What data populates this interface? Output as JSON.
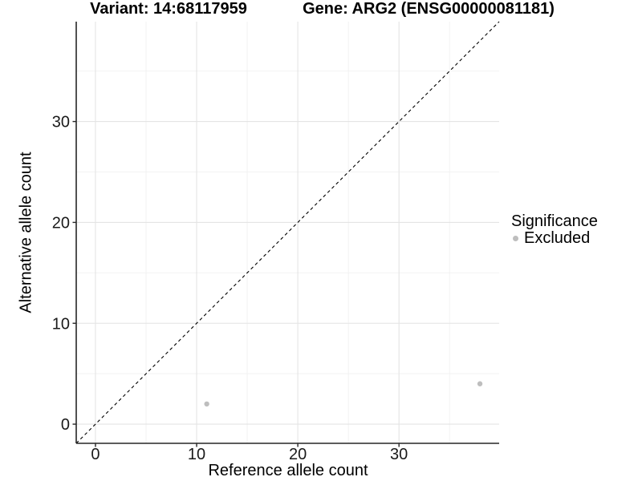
{
  "titles": {
    "variant": "Variant: 14:68117959",
    "gene": "Gene: ARG2 (ENSG00000081181)"
  },
  "legend": {
    "title": "Significance",
    "items": [
      {
        "label": "Excluded",
        "color": "#bebebe"
      }
    ]
  },
  "chart_data": {
    "type": "scatter",
    "title": "Variant: 14:68117959 | Gene: ARG2 (ENSG00000081181)",
    "xlabel": "Reference allele count",
    "ylabel": "Alternative allele count",
    "xlim": [
      -1.9,
      39.9
    ],
    "ylim": [
      -1.9,
      39.9
    ],
    "x_ticks": [
      0,
      10,
      20,
      30
    ],
    "y_ticks": [
      0,
      10,
      20,
      30
    ],
    "x_minor_gridlines": [
      5,
      15,
      25,
      35
    ],
    "y_minor_gridlines": [
      5,
      15,
      25,
      35
    ],
    "grid": true,
    "legend_position": "right",
    "series": [
      {
        "name": "Excluded",
        "color": "#bebebe",
        "points": [
          {
            "x": 11,
            "y": 2
          },
          {
            "x": 38,
            "y": 4
          }
        ]
      }
    ],
    "reference_line": {
      "type": "identity",
      "slope": 1,
      "intercept": 0,
      "style": "dashed",
      "color": "#000000"
    }
  },
  "colors": {
    "background": "#ffffff",
    "major_grid": "#e4e4e4",
    "minor_grid": "#f2f2f2",
    "axis_line": "#262626",
    "tick_text": "#1a1a1a",
    "point": "#bebebe"
  }
}
